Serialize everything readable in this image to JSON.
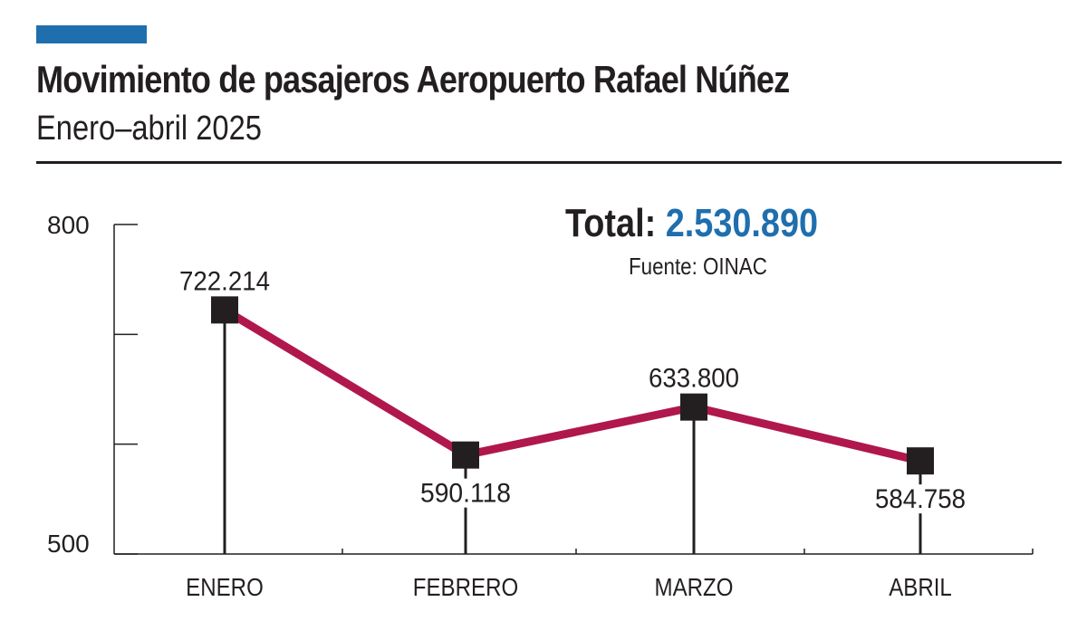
{
  "chart_data": {
    "type": "line",
    "title": "Movimiento de pasajeros  Aeropuerto Rafael Núñez",
    "subtitle": "Enero–abril 2025",
    "categories": [
      "ENERO",
      "FEBRERO",
      "MARZO",
      "ABRIL"
    ],
    "values": [
      722.214,
      590.118,
      633.8,
      584.758
    ],
    "data_labels": [
      "722.214",
      "590.118",
      "633.800",
      "584.758"
    ],
    "ylim": [
      500,
      800
    ],
    "y_tick_labels": [
      {
        "value": 800,
        "label": "800"
      },
      {
        "value": 700,
        "label": ""
      },
      {
        "value": 600,
        "label": ""
      },
      {
        "value": 500,
        "label": "500"
      }
    ],
    "total_label": "Total:",
    "total_value": "2.530.890",
    "source": "Fuente: OINAC",
    "grid": false,
    "line_color": "#b0174d",
    "accent_color": "#1f6fae"
  }
}
